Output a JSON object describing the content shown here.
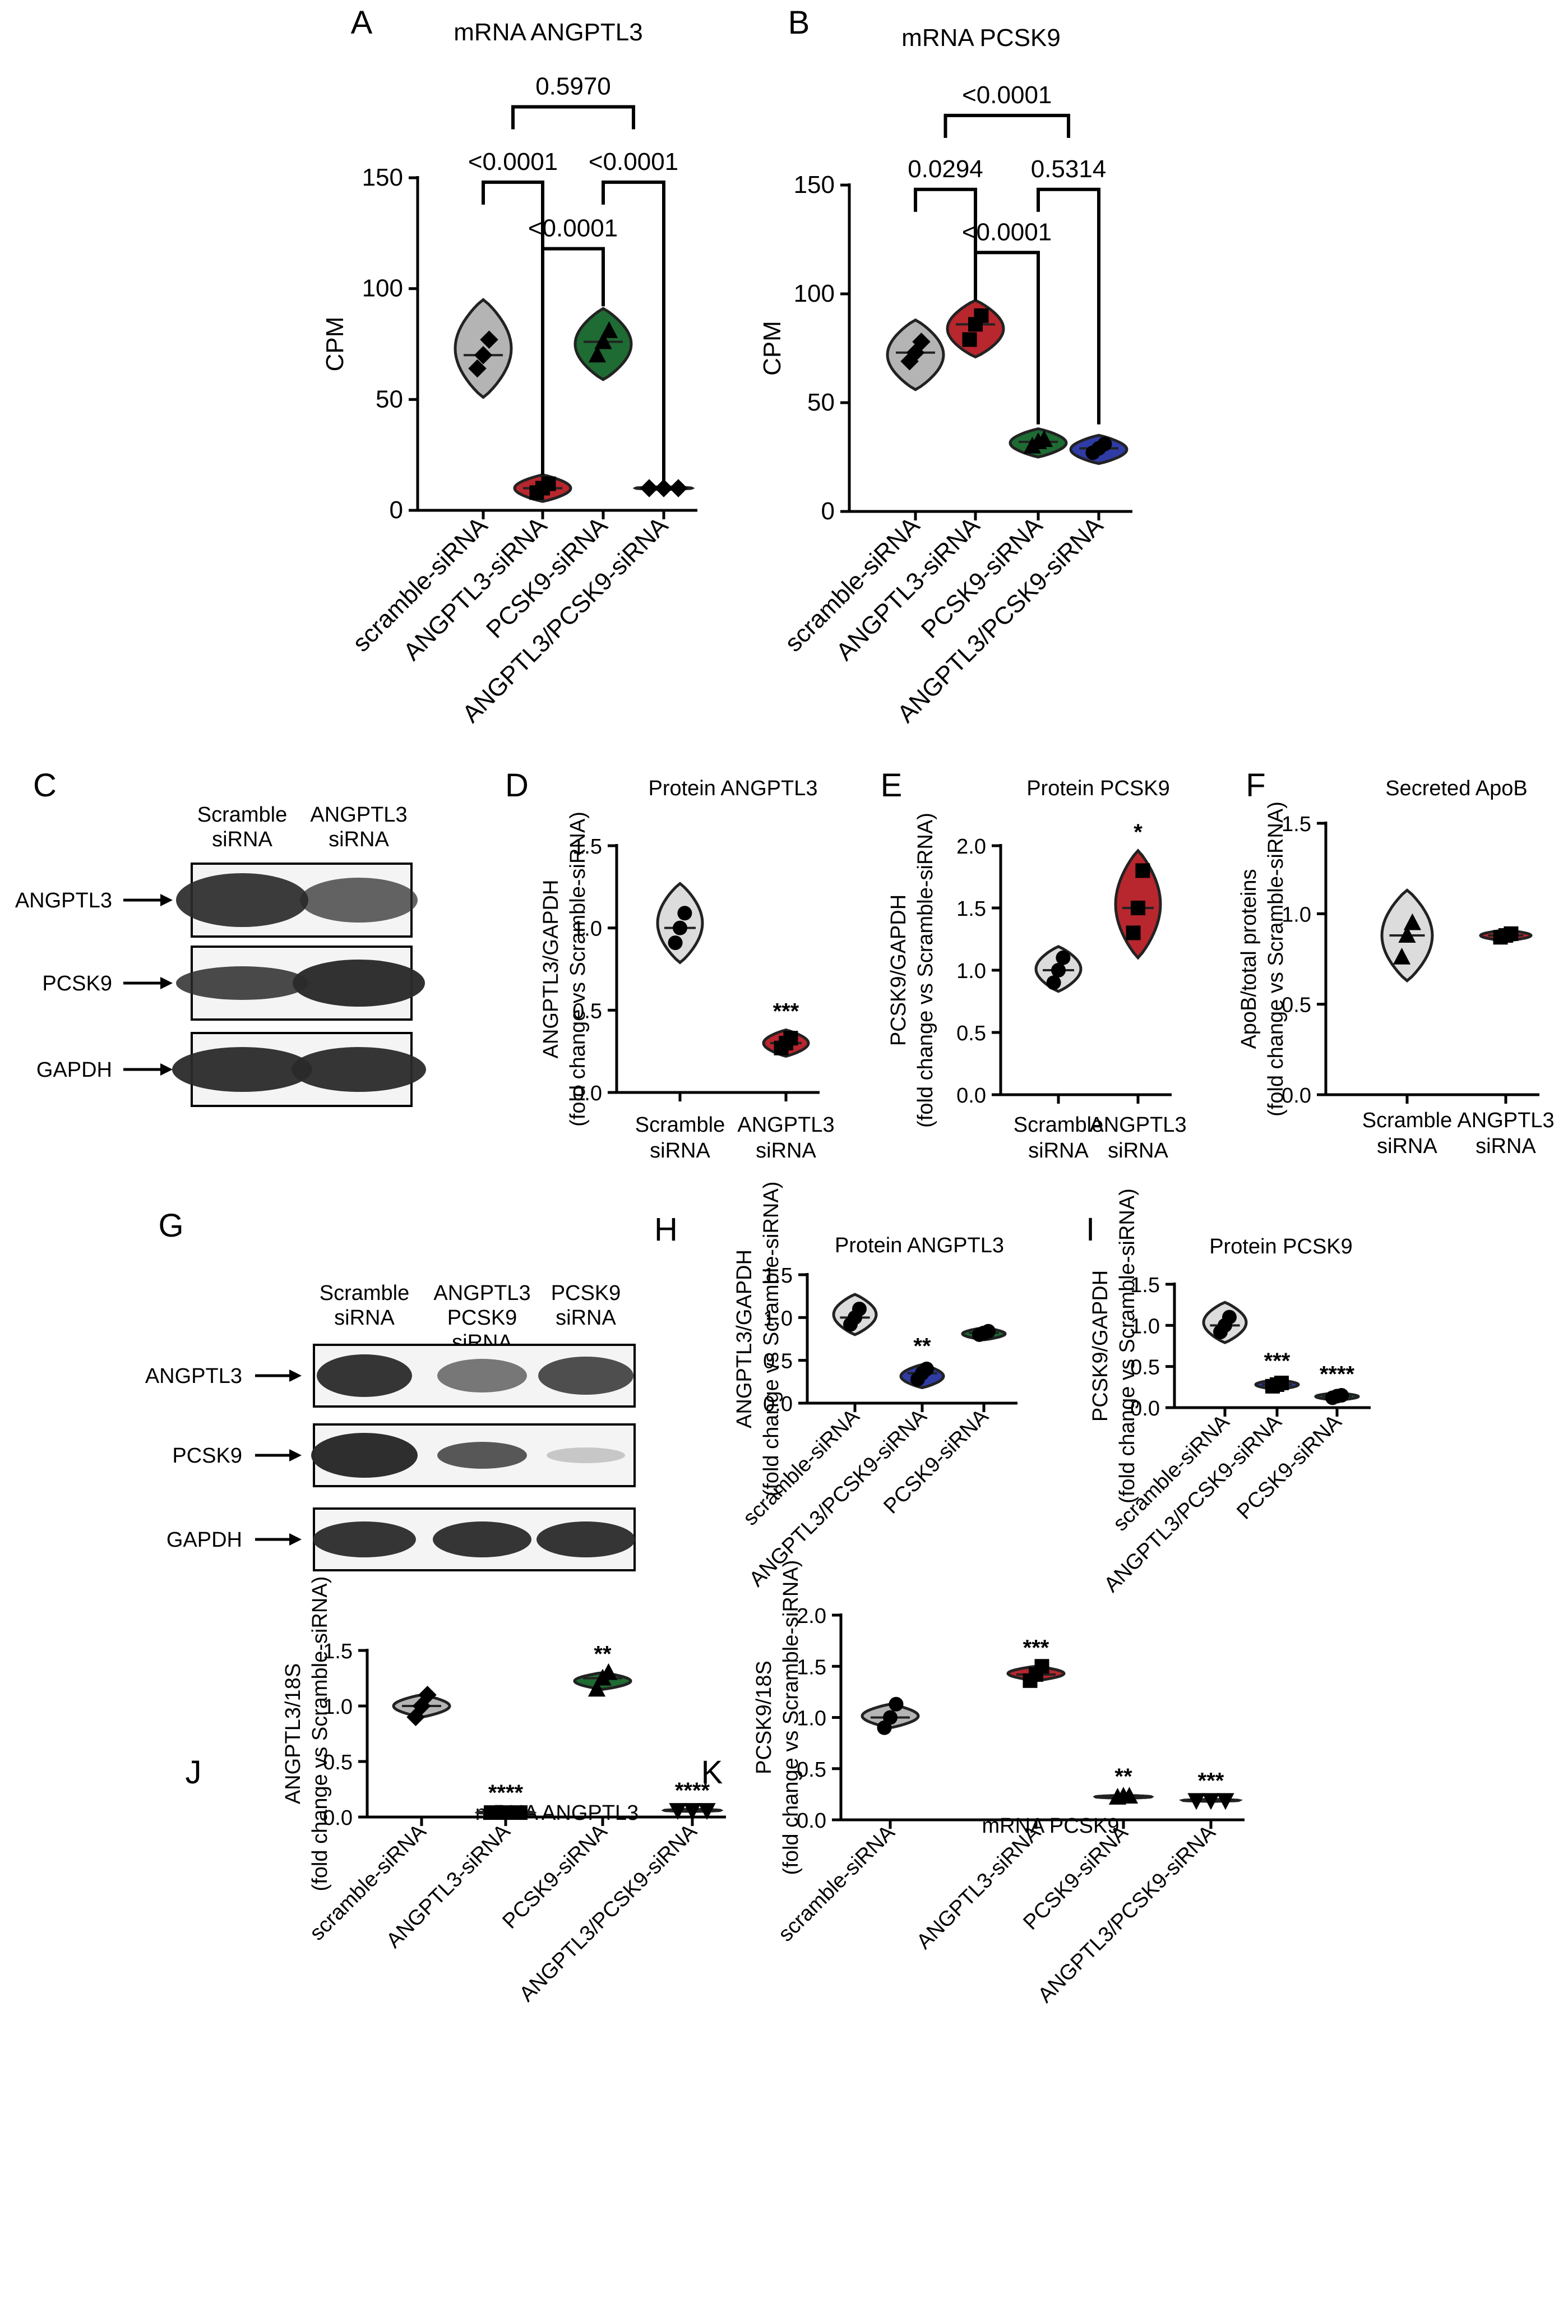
{
  "colors": {
    "scramble": "#b4b4b4",
    "scramble_light": "#dcdcdc",
    "angptl3": "#b8262e",
    "pcsk9": "#1e6b33",
    "double": "#2f3ca6",
    "blot_band": "#2a2a2a"
  },
  "blot_C": {
    "letter": "C",
    "lanes": [
      "Scramble\nsiRNA",
      "ANGPTL3\nsiRNA"
    ],
    "rows": [
      "ANGPTL3",
      "PCSK9",
      "GAPDH"
    ]
  },
  "blot_G": {
    "letter": "G",
    "lanes": [
      "Scramble\nsiRNA",
      "ANGPTL3\nPCSK9\nsiRNA",
      "PCSK9\nsiRNA"
    ],
    "rows": [
      "ANGPTL3",
      "PCSK9",
      "GAPDH"
    ]
  },
  "chart_data": [
    {
      "letter": "A",
      "type": "violin",
      "title": "mRNA ANGPTL3",
      "ylabel": "CPM",
      "ylim": [
        0,
        150
      ],
      "yticks": [
        0,
        50,
        100,
        150
      ],
      "rotate_labels": true,
      "categories": [
        "scramble-siRNA",
        "ANGPTL3-siRNA",
        "PCSK9-siRNA",
        "ANGPTL3/PCSK9-siRNA"
      ],
      "series": [
        {
          "values": [
            64,
            70,
            77
          ],
          "marker": "diamond",
          "color_key": "scramble",
          "range": [
            51,
            95
          ]
        },
        {
          "values": [
            8,
            10,
            12
          ],
          "marker": "square",
          "color_key": "angptl3",
          "range": [
            4,
            16
          ]
        },
        {
          "values": [
            70,
            76,
            81
          ],
          "marker": "triangle",
          "color_key": "pcsk9",
          "range": [
            59,
            91
          ]
        },
        {
          "values": [
            10,
            10,
            10
          ],
          "marker": "diamond",
          "color_key": "double",
          "range": [
            9.4,
            10.6
          ]
        }
      ],
      "comparisons": [
        {
          "a": 0,
          "b": 1,
          "label": "<0.0001",
          "y": 148,
          "drop_b": 16
        },
        {
          "a": 2,
          "b": 3,
          "label": "<0.0001",
          "y": 148,
          "drop_b": 12
        },
        {
          "a": 1,
          "b": 2,
          "label": "<0.0001",
          "y": 118,
          "drop_a": 16,
          "drop_b": 92
        },
        {
          "a": 0.5,
          "b": 2.5,
          "label": "0.5970",
          "y": 182
        }
      ]
    },
    {
      "letter": "B",
      "type": "violin",
      "title": "mRNA PCSK9",
      "ylabel": "CPM",
      "ylim": [
        0,
        150
      ],
      "yticks": [
        0,
        50,
        100,
        150
      ],
      "rotate_labels": true,
      "categories": [
        "scramble-siRNA",
        "ANGPTL3-siRNA",
        "PCSK9-siRNA",
        "ANGPTL3/PCSK9-siRNA"
      ],
      "series": [
        {
          "values": [
            69,
            73,
            78
          ],
          "marker": "diamond",
          "color_key": "scramble",
          "range": [
            56,
            88
          ]
        },
        {
          "values": [
            79,
            86,
            90
          ],
          "marker": "square",
          "color_key": "angptl3",
          "range": [
            71,
            97
          ]
        },
        {
          "values": [
            30,
            32,
            33
          ],
          "marker": "triangle",
          "color_key": "pcsk9",
          "range": [
            25,
            38
          ]
        },
        {
          "values": [
            27,
            29,
            31
          ],
          "marker": "circle",
          "color_key": "double",
          "range": [
            22,
            35
          ]
        }
      ],
      "comparisons": [
        {
          "a": 0,
          "b": 1,
          "label": "0.0294",
          "y": 148,
          "drop_b": 97
        },
        {
          "a": 2,
          "b": 3,
          "label": "0.5314",
          "y": 148,
          "drop_b": 40
        },
        {
          "a": 1,
          "b": 2,
          "label": "<0.0001",
          "y": 119,
          "drop_a": 97,
          "drop_b": 40
        },
        {
          "a": 0.5,
          "b": 2.5,
          "label": "<0.0001",
          "y": 182
        }
      ]
    },
    {
      "letter": "D",
      "type": "violin",
      "title": "Protein ANGPTL3",
      "ylabel": [
        "ANGPTL3/GAPDH",
        "(fold change vs Scramble-siRNA)"
      ],
      "ylim": [
        0,
        1.5
      ],
      "yticks": [
        0.0,
        0.5,
        1.0,
        1.5
      ],
      "rotate_labels": false,
      "categories": [
        "Scramble\nsiRNA",
        "ANGPTL3\nsiRNA"
      ],
      "series": [
        {
          "values": [
            0.91,
            1.0,
            1.09
          ],
          "marker": "circle",
          "color_key": "scramble_light",
          "range": [
            0.79,
            1.27
          ],
          "stars": ""
        },
        {
          "values": [
            0.27,
            0.3,
            0.33
          ],
          "marker": "square",
          "color_key": "angptl3",
          "range": [
            0.22,
            0.38
          ],
          "stars": "***"
        }
      ]
    },
    {
      "letter": "E",
      "type": "violin",
      "title": "Protein PCSK9",
      "ylabel": [
        "PCSK9/GAPDH",
        "(fold change vs Scramble-siRNA)"
      ],
      "ylim": [
        0,
        2.0
      ],
      "yticks": [
        0.0,
        0.5,
        1.0,
        1.5,
        2.0
      ],
      "rotate_labels": false,
      "categories": [
        "Scramble\nsiRNA",
        "ANGPTL3\nsiRNA"
      ],
      "series": [
        {
          "values": [
            0.9,
            1.0,
            1.1
          ],
          "marker": "circle",
          "color_key": "scramble_light",
          "range": [
            0.83,
            1.19
          ],
          "stars": ""
        },
        {
          "values": [
            1.3,
            1.5,
            1.8
          ],
          "marker": "square",
          "color_key": "angptl3",
          "range": [
            1.1,
            1.96
          ],
          "stars": "*"
        }
      ]
    },
    {
      "letter": "F",
      "type": "violin",
      "title": "Secreted ApoB",
      "ylabel": [
        "ApoB/total proteins",
        "(fold change vs Scramble-siRNA)"
      ],
      "ylim": [
        0,
        1.5
      ],
      "yticks": [
        0.0,
        0.5,
        1.0,
        1.5
      ],
      "rotate_labels": false,
      "categories": [
        "Scramble\nsiRNA",
        "ANGPTL3\nsiRNA"
      ],
      "series": [
        {
          "values": [
            0.76,
            0.88,
            0.95
          ],
          "marker": "triangle",
          "color_key": "scramble_light",
          "range": [
            0.63,
            1.13
          ],
          "stars": ""
        },
        {
          "values": [
            0.87,
            0.88,
            0.89
          ],
          "marker": "square",
          "color_key": "angptl3",
          "range": [
            0.85,
            0.91
          ],
          "stars": ""
        }
      ]
    },
    {
      "letter": "H",
      "type": "violin",
      "title": "Protein ANGPTL3",
      "ylabel": [
        "ANGPTL3/GAPDH",
        "(fold change vs Scramble-siRNA)"
      ],
      "ylim": [
        0,
        1.5
      ],
      "yticks": [
        0.0,
        0.5,
        1.0,
        1.5
      ],
      "rotate_labels": true,
      "categories": [
        "scramble-siRNA",
        "ANGPTL3/PCSK9-siRNA",
        "PCSK9-siRNA"
      ],
      "series": [
        {
          "values": [
            0.92,
            1.0,
            1.1
          ],
          "marker": "circle",
          "color_key": "scramble_light",
          "range": [
            0.8,
            1.27
          ],
          "stars": ""
        },
        {
          "values": [
            0.28,
            0.35,
            0.4
          ],
          "marker": "circle",
          "color_key": "double",
          "range": [
            0.18,
            0.45
          ],
          "stars": "**"
        },
        {
          "values": [
            0.8,
            0.82,
            0.84
          ],
          "marker": "circle",
          "color_key": "pcsk9",
          "range": [
            0.74,
            0.88
          ],
          "stars": ""
        }
      ]
    },
    {
      "letter": "I",
      "type": "violin",
      "title": "Protein PCSK9",
      "ylabel": [
        "PCSK9/GAPDH",
        "(fold change vs Scramble-siRNA)"
      ],
      "ylim": [
        0,
        1.5
      ],
      "yticks": [
        0.0,
        0.5,
        1.0,
        1.5
      ],
      "rotate_labels": true,
      "categories": [
        "scramble-siRNA",
        "ANGPTL3/PCSK9-siRNA",
        "PCSK9-siRNA"
      ],
      "series": [
        {
          "values": [
            0.92,
            1.0,
            1.1
          ],
          "marker": "circle",
          "color_key": "scramble_light",
          "range": [
            0.79,
            1.28
          ],
          "stars": ""
        },
        {
          "values": [
            0.26,
            0.28,
            0.3
          ],
          "marker": "square",
          "color_key": "double",
          "range": [
            0.22,
            0.34
          ],
          "stars": "***"
        },
        {
          "values": [
            0.12,
            0.14,
            0.15
          ],
          "marker": "circle",
          "color_key": "pcsk9",
          "range": [
            0.09,
            0.18
          ],
          "stars": "****"
        }
      ]
    },
    {
      "letter": "J",
      "type": "violin",
      "title": "mRNA ANGPTL3",
      "ylabel": [
        "ANGPTL3/18S",
        "(fold change vs Scramble-siRNA)"
      ],
      "ylim": [
        0,
        1.5
      ],
      "yticks": [
        0.0,
        0.5,
        1.0,
        1.5
      ],
      "rotate_labels": true,
      "categories": [
        "scramble-siRNA",
        "ANGPTL3-siRNA",
        "PCSK9-siRNA",
        "ANGPTL3/PCSK9-siRNA"
      ],
      "series": [
        {
          "values": [
            0.9,
            1.0,
            1.1
          ],
          "marker": "diamond",
          "color_key": "scramble",
          "range": [
            0.9,
            1.1
          ],
          "stars": ""
        },
        {
          "values": [
            0.04,
            0.04,
            0.04
          ],
          "marker": "square",
          "color_key": "angptl3",
          "range": [
            0.03,
            0.05
          ],
          "stars": "****"
        },
        {
          "values": [
            1.15,
            1.25,
            1.3
          ],
          "marker": "triangle",
          "color_key": "pcsk9",
          "range": [
            1.15,
            1.3
          ],
          "stars": "**"
        },
        {
          "values": [
            0.06,
            0.06,
            0.06
          ],
          "marker": "invtriangle",
          "color_key": "double",
          "range": [
            0.05,
            0.07
          ],
          "stars": "****"
        }
      ]
    },
    {
      "letter": "K",
      "type": "violin",
      "title": "mRNA PCSK9",
      "ylabel": [
        "PCSK9/18S",
        "(fold change vs Scramble-siRNA)"
      ],
      "ylim": [
        0,
        2.0
      ],
      "yticks": [
        0.0,
        0.5,
        1.0,
        1.5,
        2.0
      ],
      "rotate_labels": true,
      "categories": [
        "scramble-siRNA",
        "ANGPTL3-siRNA",
        "PCSK9-siRNA",
        "ANGPTL3/PCSK9-siRNA"
      ],
      "series": [
        {
          "values": [
            0.9,
            1.0,
            1.13
          ],
          "marker": "circle",
          "color_key": "scramble",
          "range": [
            0.9,
            1.13
          ],
          "stars": ""
        },
        {
          "values": [
            1.36,
            1.42,
            1.5
          ],
          "marker": "square",
          "color_key": "angptl3",
          "range": [
            1.36,
            1.5
          ],
          "stars": "***"
        },
        {
          "values": [
            0.22,
            0.23,
            0.23
          ],
          "marker": "triangle",
          "color_key": "pcsk9",
          "range": [
            0.21,
            0.24
          ],
          "stars": "**"
        },
        {
          "values": [
            0.19,
            0.19,
            0.19
          ],
          "marker": "invtriangle",
          "color_key": "double",
          "range": [
            0.18,
            0.2
          ],
          "stars": "***"
        }
      ]
    }
  ]
}
